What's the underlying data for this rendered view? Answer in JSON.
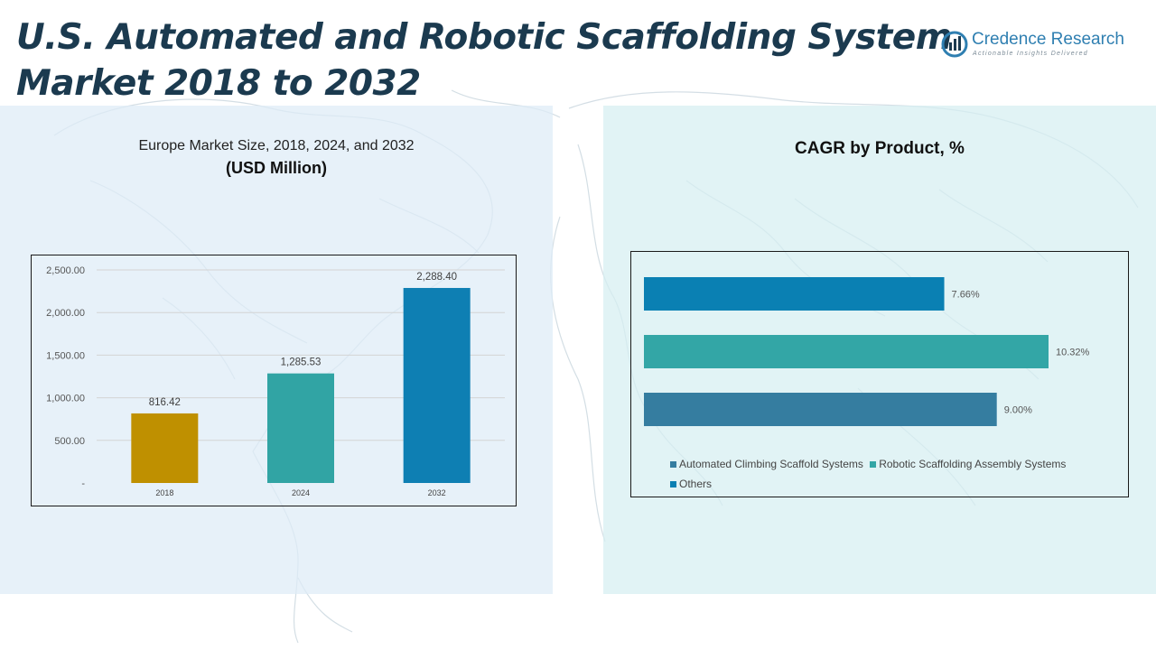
{
  "page": {
    "title_line1": "U.S. Automated and Robotic Scaffolding System",
    "title_line2": "Market 2018 to 2032"
  },
  "logo": {
    "name": "Credence Research",
    "tagline": "Actionable Insights Delivered",
    "icon": "credence-logo-icon"
  },
  "colors": {
    "title": "#1b3a4f",
    "bar_2018": "#bf9000",
    "bar_2024": "#31a4a4",
    "bar_2032": "#0e7fb3",
    "automated_climbing": "#357da0",
    "robotic_assembly": "#33a6a6",
    "others": "#0a80b3"
  },
  "left_chart": {
    "heading": "Europe Market Size, 2018, 2024, and 2032",
    "subheading": "(USD Million)"
  },
  "right_chart": {
    "heading": "CAGR by Product, %"
  },
  "chart_data": [
    {
      "type": "bar",
      "title": "Europe Market Size, 2018, 2024, and 2032",
      "ylabel": "USD Million",
      "categories": [
        "2018",
        "2024",
        "2032"
      ],
      "values": [
        816.42,
        1285.53,
        2288.4
      ],
      "value_labels": [
        "816.42",
        "1,285.53",
        "2,288.40"
      ],
      "yticks": [
        "-",
        "500.00",
        "1,000.00",
        "1,500.00",
        "2,000.00",
        "2,500.00"
      ],
      "ylim": [
        0,
        2500
      ],
      "grid": true,
      "legend": false
    },
    {
      "type": "bar",
      "orientation": "horizontal",
      "title": "CAGR by Product, %",
      "series": [
        {
          "name": "Others",
          "value": 7.66,
          "label": "7.66%"
        },
        {
          "name": "Robotic Scaffolding Assembly Systems",
          "value": 10.32,
          "label": "10.32%"
        },
        {
          "name": "Automated Climbing Scaffold Systems",
          "value": 9.0,
          "label": "9.00%"
        }
      ],
      "legend_entries": [
        "Automated Climbing Scaffold Systems",
        "Robotic Scaffolding Assembly Systems",
        "Others"
      ],
      "legend_position": "bottom",
      "grid": false
    }
  ]
}
